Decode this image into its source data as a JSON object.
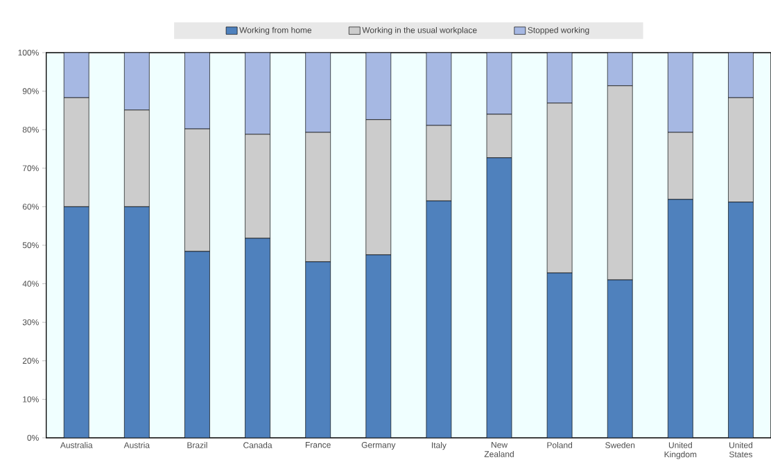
{
  "chart_data": {
    "type": "bar",
    "stacked": true,
    "legend": "top",
    "grid": false,
    "categories": [
      "Australia",
      "Austria",
      "Brazil",
      "Canada",
      "France",
      "Germany",
      "Italy",
      "New Zealand",
      "Poland",
      "Sweden",
      "United Kingdom",
      "United States"
    ],
    "series": [
      {
        "name": "Working from home",
        "color": "#4f81bd",
        "values": [
          60,
          60,
          48.4,
          51.8,
          45.7,
          47.5,
          61.5,
          72.7,
          42.8,
          41,
          61.9,
          61.2
        ]
      },
      {
        "name": "Working in the usual workplace",
        "color": "#cccccc",
        "values": [
          28.3,
          25.1,
          31.8,
          27,
          33.6,
          35.1,
          19.6,
          11.3,
          44.1,
          50.4,
          17.4,
          27.1
        ]
      },
      {
        "name": "Stopped working",
        "color": "#a6b8e3",
        "values": [
          11.7,
          14.9,
          19.8,
          21.2,
          20.7,
          17.4,
          18.9,
          16,
          13.1,
          8.6,
          20.7,
          11.7
        ]
      }
    ],
    "ylim": [
      0,
      100
    ],
    "yticks": [
      {
        "value": 0,
        "label": "0%"
      },
      {
        "value": 10,
        "label": "10%"
      },
      {
        "value": 20,
        "label": "20%"
      },
      {
        "value": 30,
        "label": "30%"
      },
      {
        "value": 40,
        "label": "40%"
      },
      {
        "value": 50,
        "label": "50%"
      },
      {
        "value": 60,
        "label": "60%"
      },
      {
        "value": 70,
        "label": "70%"
      },
      {
        "value": 80,
        "label": "80%"
      },
      {
        "value": 90,
        "label": "90%"
      },
      {
        "value": 100,
        "label": "100%"
      }
    ]
  }
}
